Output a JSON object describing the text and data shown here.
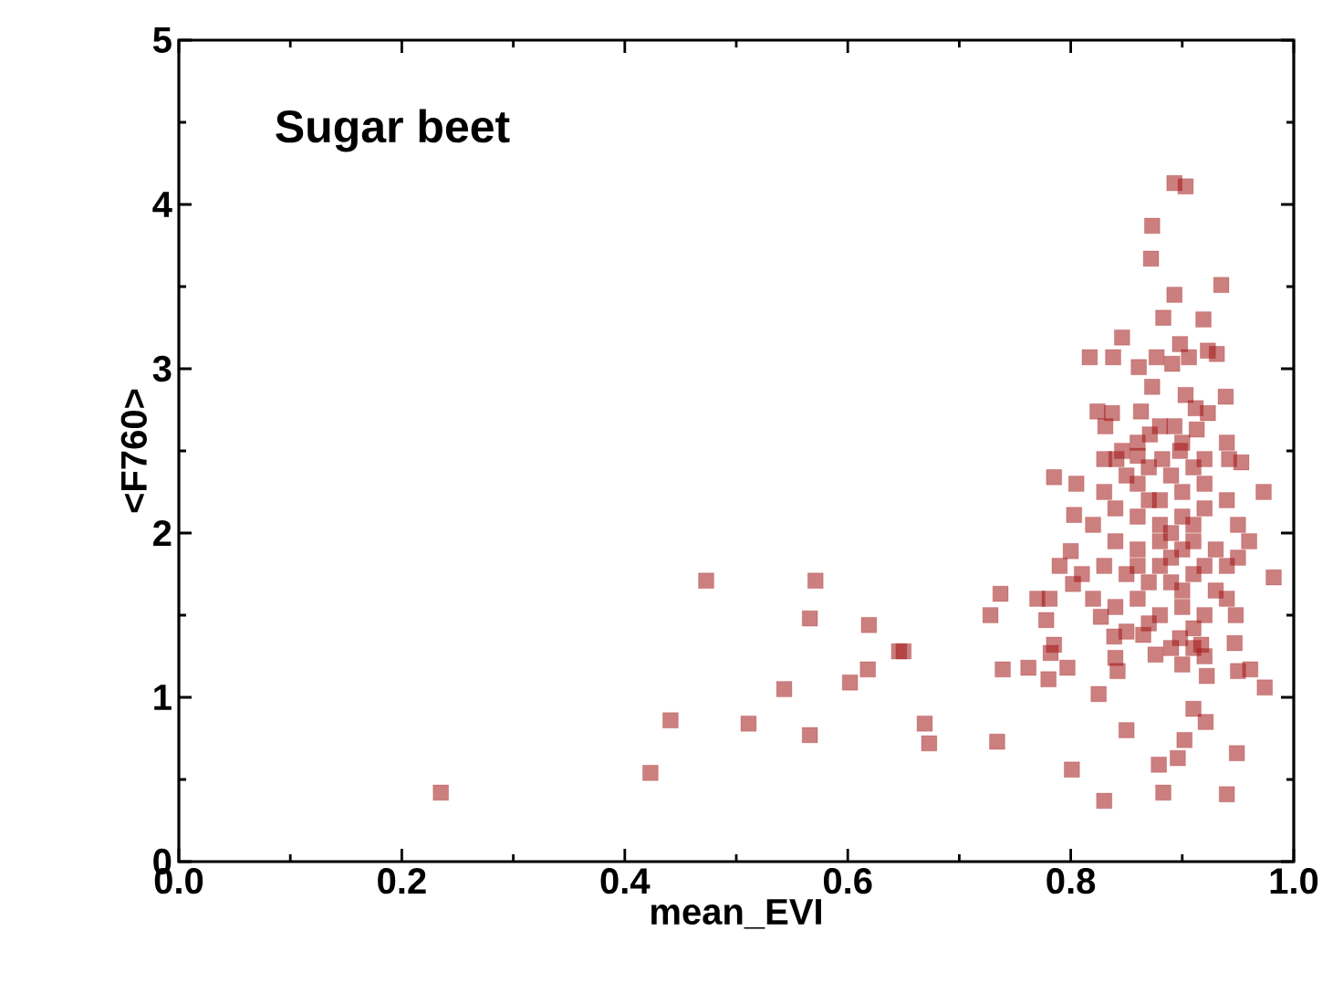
{
  "chart_data": {
    "type": "scatter",
    "title": "Sugar beet",
    "xlabel": "mean_EVI",
    "ylabel": "<F760>",
    "color": "#a31515",
    "marker": "square",
    "grid": false,
    "xlim": [
      0,
      1
    ],
    "ylim": [
      0,
      5
    ],
    "xticks": [
      {
        "value": 0,
        "label": "0.0"
      },
      {
        "value": 0.2,
        "label": "0.2"
      },
      {
        "value": 0.4,
        "label": "0.4"
      },
      {
        "value": 0.6,
        "label": "0.6"
      },
      {
        "value": 0.8,
        "label": "0.8"
      },
      {
        "value": 1,
        "label": "1.0"
      }
    ],
    "yticks": [
      0,
      1,
      2,
      3,
      4,
      5
    ],
    "x": [
      0.235,
      0.423,
      0.441,
      0.473,
      0.511,
      0.543,
      0.566,
      0.571,
      0.566,
      0.602,
      0.618,
      0.619,
      0.646,
      0.65,
      0.737,
      0.728,
      0.669,
      0.673,
      0.734,
      0.739,
      0.762,
      0.77,
      0.781,
      0.778,
      0.785,
      0.782,
      0.78,
      0.797,
      0.801,
      0.825,
      0.83,
      0.85,
      0.84,
      0.842,
      0.879,
      0.883,
      0.896,
      0.902,
      0.91,
      0.921,
      0.949,
      0.94,
      0.974,
      0.961,
      0.95,
      0.947,
      0.982,
      0.973,
      0.948,
      0.922,
      0.865,
      0.839,
      0.827,
      0.785,
      0.805,
      0.803,
      0.79,
      0.8,
      0.802,
      0.898,
      0.917,
      0.876,
      0.893,
      0.903,
      0.873,
      0.872,
      0.935,
      0.893,
      0.883,
      0.919,
      0.846,
      0.817,
      0.838,
      0.898,
      0.923,
      0.931,
      0.877,
      0.891,
      0.906,
      0.861,
      0.873,
      0.903,
      0.939,
      0.824,
      0.837,
      0.863,
      0.831,
      0.912,
      0.923,
      0.893,
      0.913,
      0.94,
      0.942,
      0.953,
      0.871,
      0.846,
      0.841,
      0.86,
      0.882,
      0.898,
      0.85,
      0.86,
      0.87,
      0.88,
      0.89,
      0.9,
      0.91,
      0.92,
      0.83,
      0.84,
      0.86,
      0.88,
      0.9,
      0.92,
      0.94,
      0.95,
      0.82,
      0.84,
      0.86,
      0.88,
      0.89,
      0.91,
      0.93,
      0.95,
      0.81,
      0.83,
      0.85,
      0.87,
      0.89,
      0.91,
      0.93,
      0.94,
      0.82,
      0.84,
      0.86,
      0.88,
      0.9,
      0.92,
      0.87,
      0.91,
      0.89,
      0.9,
      0.92,
      0.85,
      0.94,
      0.96,
      0.86,
      0.9,
      0.92,
      0.88,
      0.83,
      0.87,
      0.91,
      0.89,
      0.9,
      0.92,
      0.86,
      0.88,
      0.9,
      0.91
    ],
    "values": [
      0.42,
      0.54,
      0.86,
      1.71,
      0.84,
      1.05,
      1.48,
      1.71,
      0.77,
      1.09,
      1.17,
      1.44,
      1.28,
      1.28,
      1.63,
      1.5,
      0.84,
      0.72,
      0.73,
      1.17,
      1.18,
      1.6,
      1.6,
      1.47,
      1.32,
      1.27,
      1.11,
      1.18,
      0.56,
      1.02,
      0.37,
      0.8,
      1.24,
      1.16,
      0.59,
      0.42,
      0.63,
      0.74,
      0.93,
      0.85,
      0.66,
      0.41,
      1.06,
      1.17,
      1.16,
      1.33,
      1.73,
      2.25,
      1.5,
      1.13,
      1.38,
      1.37,
      1.49,
      2.34,
      2.3,
      2.11,
      1.8,
      1.89,
      1.69,
      1.36,
      1.32,
      1.26,
      4.13,
      4.11,
      3.87,
      3.67,
      3.51,
      3.45,
      3.31,
      3.3,
      3.19,
      3.07,
      3.07,
      3.15,
      3.11,
      3.09,
      3.07,
      3.03,
      3.07,
      3.01,
      2.89,
      2.84,
      2.83,
      2.74,
      2.73,
      2.74,
      2.65,
      2.76,
      2.73,
      2.65,
      2.63,
      2.55,
      2.45,
      2.43,
      2.6,
      2.5,
      2.45,
      2.47,
      2.45,
      2.5,
      2.35,
      2.3,
      2.4,
      2.2,
      2.35,
      2.25,
      2.4,
      2.3,
      2.25,
      2.15,
      2.1,
      2.05,
      2.1,
      2.15,
      2.2,
      2.05,
      2.05,
      1.95,
      1.9,
      1.95,
      1.85,
      1.95,
      1.9,
      1.85,
      1.75,
      1.8,
      1.75,
      1.7,
      1.7,
      1.75,
      1.65,
      1.6,
      1.6,
      1.55,
      1.6,
      1.5,
      1.55,
      1.5,
      1.45,
      1.42,
      1.3,
      1.2,
      1.25,
      1.4,
      1.8,
      1.95,
      2.55,
      2.55,
      2.45,
      2.65,
      2.45,
      2.2,
      2.05,
      2.0,
      1.9,
      1.8,
      1.8,
      1.8,
      1.65,
      1.3
    ]
  }
}
